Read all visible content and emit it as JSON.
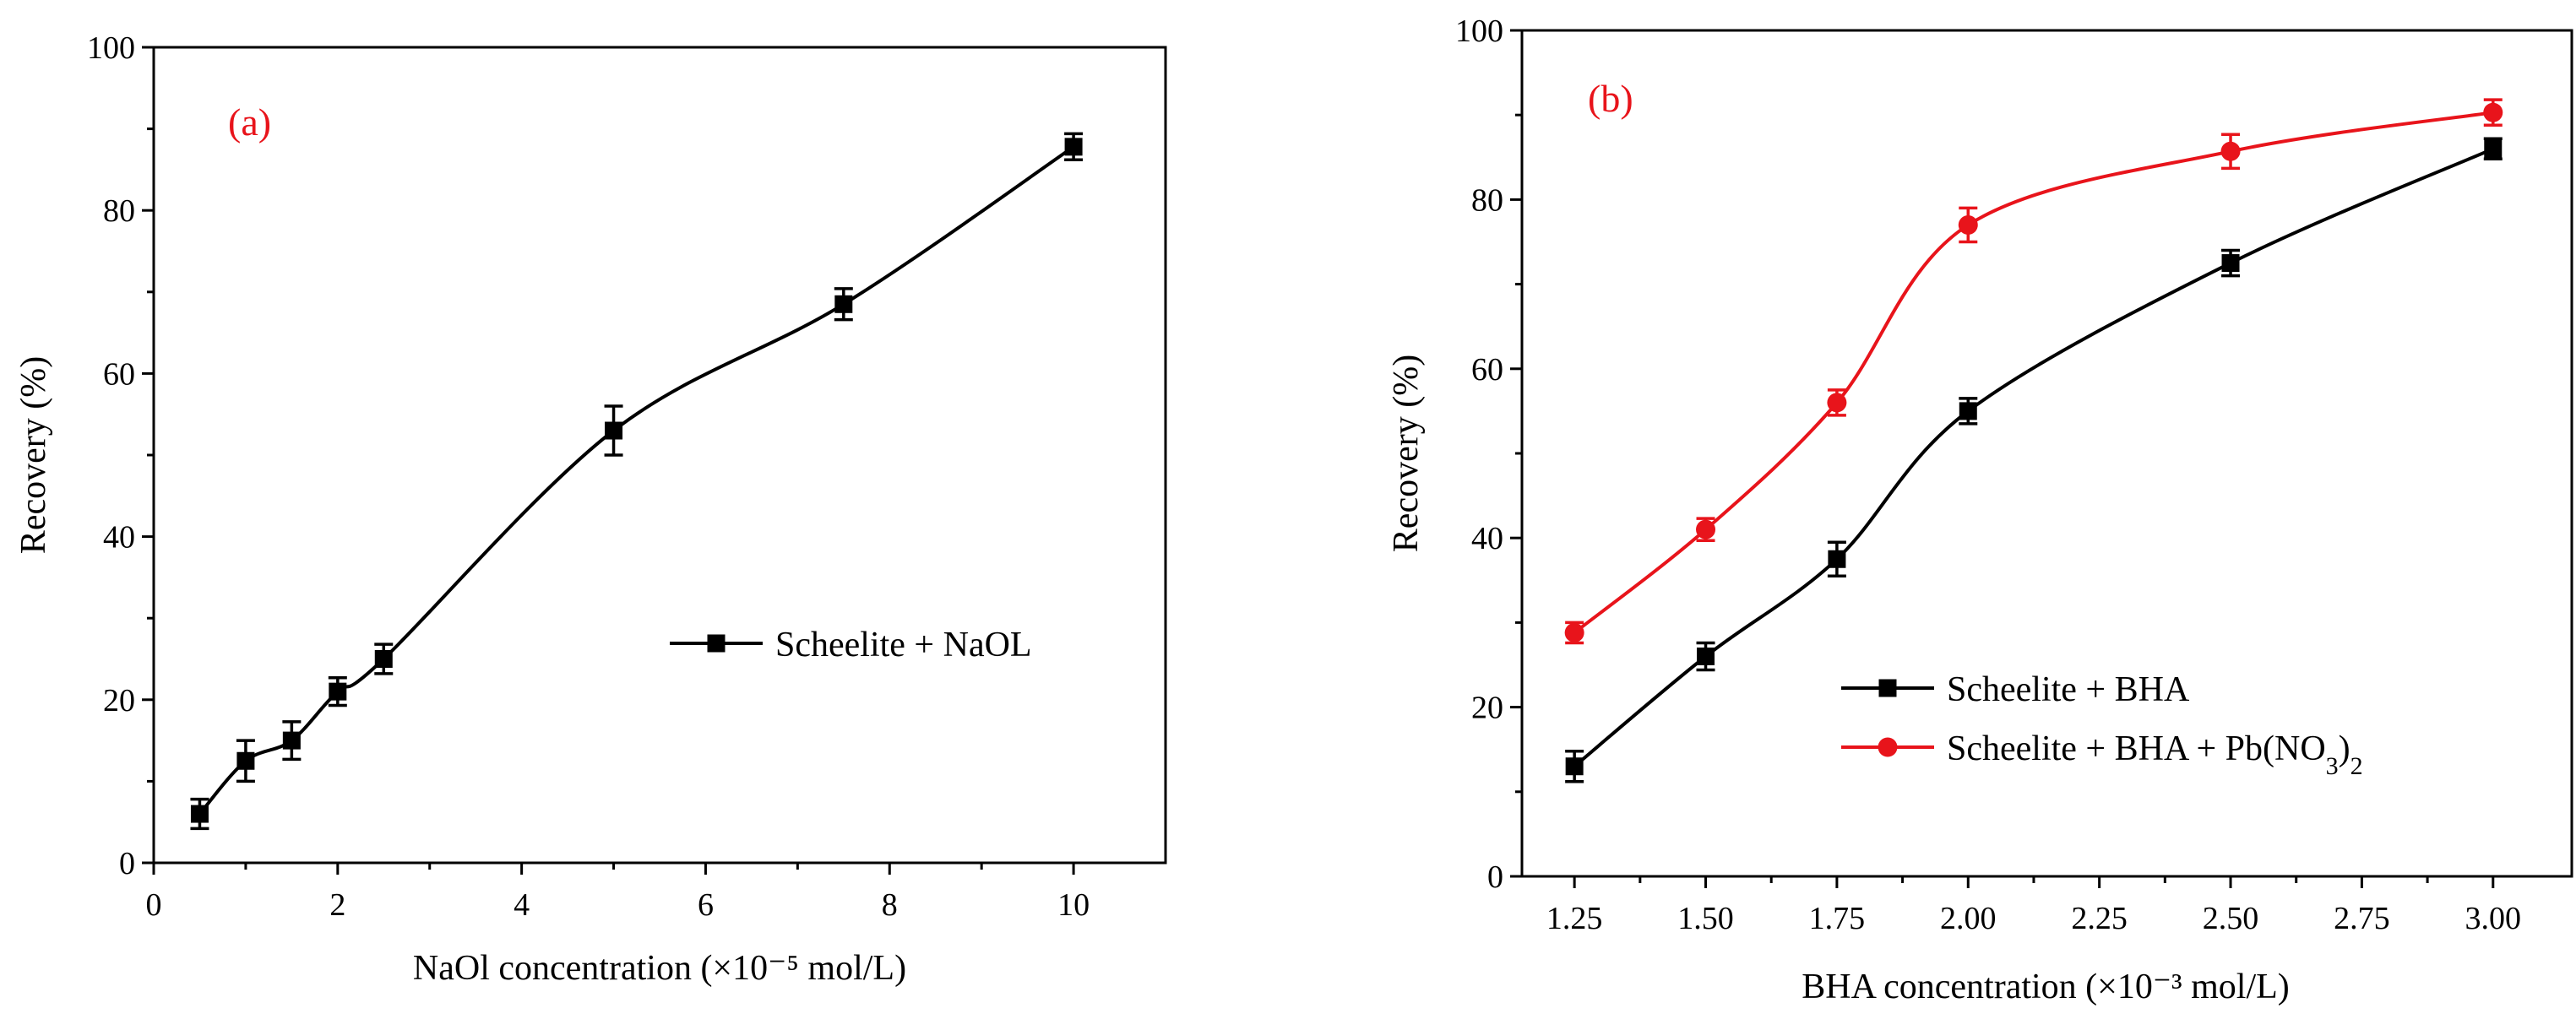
{
  "chart_data": [
    {
      "type": "line",
      "panel_label": "(a)",
      "title": "",
      "xlabel": "NaOl concentration (×10⁻⁵ mol/L)",
      "ylabel": "Recovery (%)",
      "xlim": [
        0,
        11
      ],
      "ylim": [
        0,
        100
      ],
      "xticks": [
        0,
        2,
        4,
        6,
        8,
        10
      ],
      "xtick_labels": [
        "0",
        "2",
        "4",
        "6",
        "8",
        "10"
      ],
      "yticks": [
        0,
        20,
        40,
        60,
        80,
        100
      ],
      "ytick_labels": [
        "0",
        "20",
        "40",
        "60",
        "80",
        "100"
      ],
      "grid": false,
      "legend_position": "center-right",
      "series": [
        {
          "name": "Scheelite + NaOL",
          "color": "#000000",
          "marker": "square",
          "x": [
            0.5,
            1.0,
            1.5,
            2.0,
            2.5,
            5.0,
            7.5,
            10.0
          ],
          "values": [
            6.0,
            12.5,
            15.0,
            21.0,
            25.0,
            53.0,
            68.5,
            87.8
          ],
          "errors": [
            1.8,
            2.5,
            2.3,
            1.7,
            1.8,
            3.0,
            1.9,
            1.6
          ]
        }
      ]
    },
    {
      "type": "line",
      "panel_label": "(b)",
      "title": "",
      "xlabel": "BHA concentration (×10⁻³ mol/L)",
      "ylabel": "Recovery (%)",
      "xlim": [
        1.15,
        3.15
      ],
      "ylim": [
        0,
        100
      ],
      "xticks": [
        1.25,
        1.5,
        1.75,
        2.0,
        2.25,
        2.5,
        2.75,
        3.0
      ],
      "xtick_labels": [
        "1.25",
        "1.50",
        "1.75",
        "2.00",
        "2.25",
        "2.50",
        "2.75",
        "3.00"
      ],
      "yticks": [
        0,
        20,
        40,
        60,
        80,
        100
      ],
      "ytick_labels": [
        "0",
        "20",
        "40",
        "60",
        "80",
        "100"
      ],
      "grid": false,
      "legend_position": "bottom-right",
      "series": [
        {
          "name": "Scheelite + BHA",
          "color": "#000000",
          "marker": "square",
          "x": [
            1.25,
            1.5,
            1.75,
            2.0,
            2.5,
            3.0
          ],
          "values": [
            13.0,
            26.0,
            37.5,
            55.0,
            72.5,
            86.0
          ],
          "errors": [
            1.8,
            1.6,
            2.0,
            1.5,
            1.5,
            1.2
          ]
        },
        {
          "name": "Scheelite + BHA + Pb(NO3)2",
          "name_parts": [
            "Scheelite + BHA + Pb(NO",
            "3",
            ")",
            "2"
          ],
          "color": "#e8141b",
          "marker": "circle",
          "x": [
            1.25,
            1.5,
            1.75,
            2.0,
            2.5,
            3.0
          ],
          "values": [
            28.8,
            41.0,
            56.0,
            77.0,
            85.7,
            90.3
          ],
          "errors": [
            1.2,
            1.3,
            1.5,
            2.0,
            2.0,
            1.5
          ]
        }
      ]
    }
  ]
}
